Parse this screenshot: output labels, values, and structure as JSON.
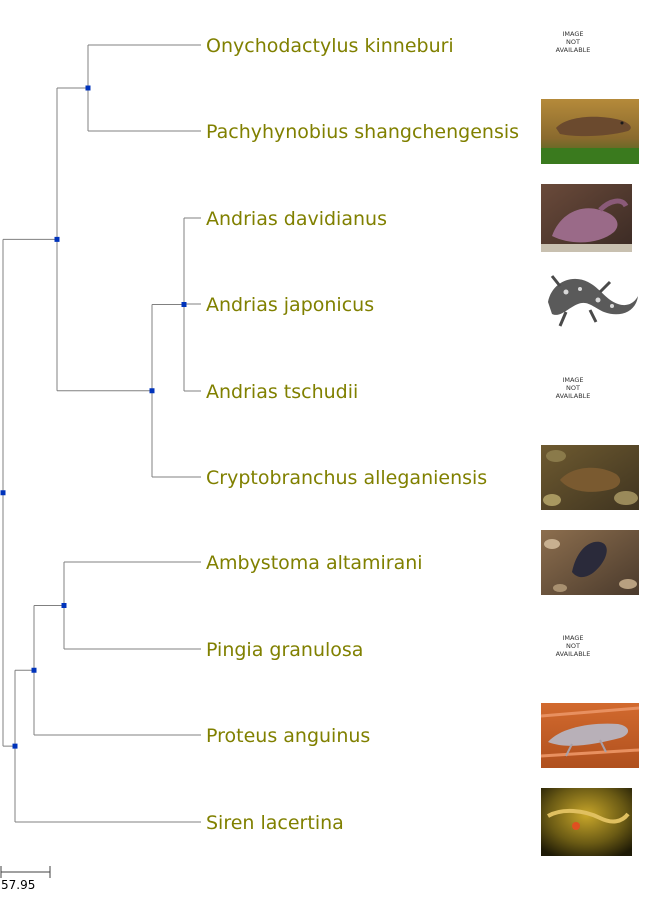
{
  "tree": {
    "label_color": "#808000",
    "branch_color": "#808080",
    "node_color": "#0033bb",
    "taxa": [
      {
        "name": "Onychodactylus kinneburi",
        "image": "not-available"
      },
      {
        "name": "Pachyhynobius shangchengensis",
        "image": "salamander-photo-brown"
      },
      {
        "name": "Andrias davidianus",
        "image": "salamander-photo-purple"
      },
      {
        "name": "Andrias japonicus",
        "image": "salamander-drawing-spotted"
      },
      {
        "name": "Andrias tschudii",
        "image": "not-available"
      },
      {
        "name": "Cryptobranchus alleganiensis",
        "image": "salamander-photo-rocks"
      },
      {
        "name": "Ambystoma altamirani",
        "image": "salamander-photo-dark"
      },
      {
        "name": "Pingia granulosa",
        "image": "not-available"
      },
      {
        "name": "Proteus anguinus",
        "image": "olm-photo-orange"
      },
      {
        "name": "Siren lacertina",
        "image": "siren-photo-green"
      }
    ],
    "image_not_available": [
      "IMAGE",
      "NOT",
      "AVAILABLE"
    ],
    "scale_bar_label": "57.95"
  }
}
